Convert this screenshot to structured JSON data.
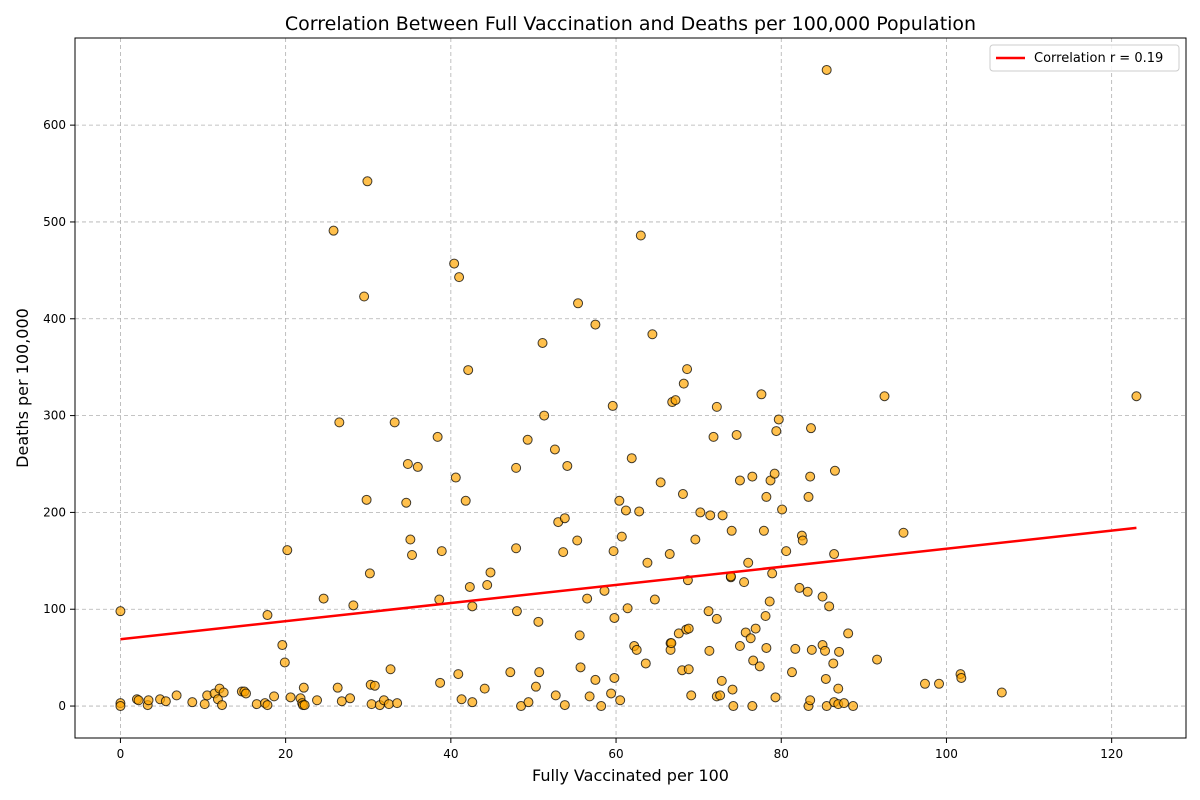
{
  "chart_data": {
    "type": "scatter",
    "title": "Correlation Between Full Vaccination and Deaths per 100,000 Population",
    "xlabel": "Fully Vaccinated per 100",
    "ylabel": "Deaths per 100,000",
    "xlim": [
      -5.5,
      129
    ],
    "ylim": [
      -33,
      690
    ],
    "xticks": [
      0,
      20,
      40,
      60,
      80,
      100,
      120
    ],
    "yticks": [
      0,
      100,
      200,
      300,
      400,
      500,
      600
    ],
    "grid": true,
    "legend_position": "top-right",
    "point_color": "#FFA500",
    "point_edge_color": "#000000",
    "line_color": "#FF0000",
    "trendline": {
      "label": "Correlation r = 0.19",
      "x": [
        0,
        123
      ],
      "y": [
        69,
        184
      ]
    },
    "points": [
      [
        0,
        3
      ],
      [
        0,
        0
      ],
      [
        0,
        98
      ],
      [
        2,
        7
      ],
      [
        2.2,
        6
      ],
      [
        3.3,
        1
      ],
      [
        3.4,
        6
      ],
      [
        4.8,
        7
      ],
      [
        5.5,
        5
      ],
      [
        6.8,
        11
      ],
      [
        8.7,
        4
      ],
      [
        10.2,
        2
      ],
      [
        10.5,
        11
      ],
      [
        11.4,
        13
      ],
      [
        11.8,
        7
      ],
      [
        12,
        18
      ],
      [
        12.3,
        1
      ],
      [
        12.5,
        14
      ],
      [
        14.7,
        15
      ],
      [
        15,
        15
      ],
      [
        15.2,
        13
      ],
      [
        16.5,
        2
      ],
      [
        17.5,
        3
      ],
      [
        17.8,
        1
      ],
      [
        17.8,
        94
      ],
      [
        18.6,
        10
      ],
      [
        19.6,
        63
      ],
      [
        19.9,
        45
      ],
      [
        20.2,
        161
      ],
      [
        20.6,
        9
      ],
      [
        21.8,
        8
      ],
      [
        22,
        3
      ],
      [
        22.1,
        1
      ],
      [
        22.2,
        19
      ],
      [
        22.3,
        1
      ],
      [
        23.8,
        6
      ],
      [
        24.6,
        111
      ],
      [
        25.8,
        491
      ],
      [
        26.3,
        19
      ],
      [
        26.5,
        293
      ],
      [
        26.8,
        5
      ],
      [
        27.8,
        8
      ],
      [
        28.2,
        104
      ],
      [
        29.5,
        423
      ],
      [
        29.8,
        213
      ],
      [
        29.9,
        542
      ],
      [
        30.2,
        137
      ],
      [
        30.3,
        22
      ],
      [
        30.4,
        2
      ],
      [
        30.8,
        21
      ],
      [
        31.4,
        1
      ],
      [
        31.9,
        6
      ],
      [
        32.5,
        2
      ],
      [
        32.7,
        38
      ],
      [
        33.2,
        293
      ],
      [
        33.5,
        3
      ],
      [
        34.6,
        210
      ],
      [
        34.8,
        250
      ],
      [
        35.1,
        172
      ],
      [
        35.3,
        156
      ],
      [
        36,
        247
      ],
      [
        38.4,
        278
      ],
      [
        38.6,
        110
      ],
      [
        38.7,
        24
      ],
      [
        38.9,
        160
      ],
      [
        40.4,
        457
      ],
      [
        40.6,
        236
      ],
      [
        40.9,
        33
      ],
      [
        41,
        443
      ],
      [
        41.3,
        7
      ],
      [
        41.8,
        212
      ],
      [
        42.1,
        347
      ],
      [
        42.3,
        123
      ],
      [
        42.6,
        4
      ],
      [
        42.6,
        103
      ],
      [
        44.1,
        18
      ],
      [
        44.4,
        125
      ],
      [
        44.8,
        138
      ],
      [
        47.2,
        35
      ],
      [
        47.9,
        246
      ],
      [
        47.9,
        163
      ],
      [
        48,
        98
      ],
      [
        48.5,
        0
      ],
      [
        49.3,
        275
      ],
      [
        49.4,
        4
      ],
      [
        50.3,
        20
      ],
      [
        50.6,
        87
      ],
      [
        50.7,
        35
      ],
      [
        51.1,
        375
      ],
      [
        51.3,
        300
      ],
      [
        52.6,
        265
      ],
      [
        52.7,
        11
      ],
      [
        53,
        190
      ],
      [
        53.6,
        159
      ],
      [
        53.8,
        1
      ],
      [
        53.8,
        194
      ],
      [
        54.1,
        248
      ],
      [
        55.3,
        171
      ],
      [
        55.4,
        416
      ],
      [
        55.6,
        73
      ],
      [
        55.7,
        40
      ],
      [
        56.5,
        111
      ],
      [
        56.8,
        10
      ],
      [
        57.5,
        394
      ],
      [
        57.5,
        27
      ],
      [
        58.2,
        0
      ],
      [
        58.6,
        119
      ],
      [
        59.4,
        13
      ],
      [
        59.6,
        310
      ],
      [
        59.7,
        160
      ],
      [
        59.8,
        91
      ],
      [
        59.8,
        29
      ],
      [
        60.4,
        212
      ],
      [
        60.5,
        6
      ],
      [
        60.7,
        175
      ],
      [
        61.2,
        202
      ],
      [
        61.4,
        101
      ],
      [
        61.9,
        256
      ],
      [
        62.2,
        62
      ],
      [
        62.5,
        58
      ],
      [
        62.8,
        201
      ],
      [
        63,
        486
      ],
      [
        63.6,
        44
      ],
      [
        63.8,
        148
      ],
      [
        64.4,
        384
      ],
      [
        64.7,
        110
      ],
      [
        65.4,
        231
      ],
      [
        66.5,
        157
      ],
      [
        66.6,
        65
      ],
      [
        66.6,
        58
      ],
      [
        66.7,
        65
      ],
      [
        66.8,
        314
      ],
      [
        67.2,
        316
      ],
      [
        67.6,
        75
      ],
      [
        68,
        37
      ],
      [
        68.1,
        219
      ],
      [
        68.2,
        333
      ],
      [
        68.5,
        79
      ],
      [
        68.6,
        348
      ],
      [
        68.7,
        130
      ],
      [
        68.8,
        80
      ],
      [
        68.8,
        38
      ],
      [
        69.1,
        11
      ],
      [
        69.6,
        172
      ],
      [
        70.2,
        200
      ],
      [
        71.2,
        98
      ],
      [
        71.3,
        57
      ],
      [
        71.4,
        197
      ],
      [
        71.8,
        278
      ],
      [
        72.2,
        309
      ],
      [
        72.2,
        90
      ],
      [
        72.2,
        10
      ],
      [
        72.6,
        11
      ],
      [
        72.8,
        26
      ],
      [
        72.9,
        197
      ],
      [
        73.9,
        133
      ],
      [
        73.9,
        134
      ],
      [
        74,
        181
      ],
      [
        74.1,
        17
      ],
      [
        74.2,
        0
      ],
      [
        74.6,
        280
      ],
      [
        75,
        233
      ],
      [
        75,
        62
      ],
      [
        75.5,
        128
      ],
      [
        75.7,
        76
      ],
      [
        76,
        148
      ],
      [
        76.3,
        70
      ],
      [
        76.5,
        237
      ],
      [
        76.5,
        0
      ],
      [
        76.6,
        47
      ],
      [
        76.9,
        80
      ],
      [
        77.4,
        41
      ],
      [
        77.6,
        322
      ],
      [
        77.9,
        181
      ],
      [
        78.1,
        93
      ],
      [
        78.2,
        60
      ],
      [
        78.2,
        216
      ],
      [
        78.6,
        108
      ],
      [
        78.7,
        233
      ],
      [
        78.9,
        137
      ],
      [
        79.2,
        240
      ],
      [
        79.3,
        9
      ],
      [
        79.4,
        284
      ],
      [
        79.7,
        296
      ],
      [
        80.1,
        203
      ],
      [
        80.6,
        160
      ],
      [
        81.3,
        35
      ],
      [
        81.7,
        59
      ],
      [
        82.2,
        122
      ],
      [
        82.5,
        176
      ],
      [
        82.6,
        171
      ],
      [
        83.2,
        118
      ],
      [
        83.3,
        0
      ],
      [
        83.3,
        216
      ],
      [
        83.5,
        6
      ],
      [
        83.5,
        237
      ],
      [
        83.6,
        287
      ],
      [
        83.7,
        58
      ],
      [
        85,
        113
      ],
      [
        85,
        63
      ],
      [
        85.3,
        57
      ],
      [
        85.4,
        28
      ],
      [
        85.5,
        657
      ],
      [
        85.5,
        0
      ],
      [
        85.8,
        103
      ],
      [
        86.3,
        44
      ],
      [
        86.4,
        157
      ],
      [
        86.4,
        4
      ],
      [
        86.5,
        243
      ],
      [
        86.9,
        2
      ],
      [
        86.9,
        18
      ],
      [
        87,
        56
      ],
      [
        87.6,
        3
      ],
      [
        88.1,
        75
      ],
      [
        88.7,
        0
      ],
      [
        91.6,
        48
      ],
      [
        92.5,
        320
      ],
      [
        94.8,
        179
      ],
      [
        97.4,
        23
      ],
      [
        99.1,
        23
      ],
      [
        101.7,
        33
      ],
      [
        101.8,
        29
      ],
      [
        106.7,
        14
      ],
      [
        123,
        320
      ]
    ]
  }
}
